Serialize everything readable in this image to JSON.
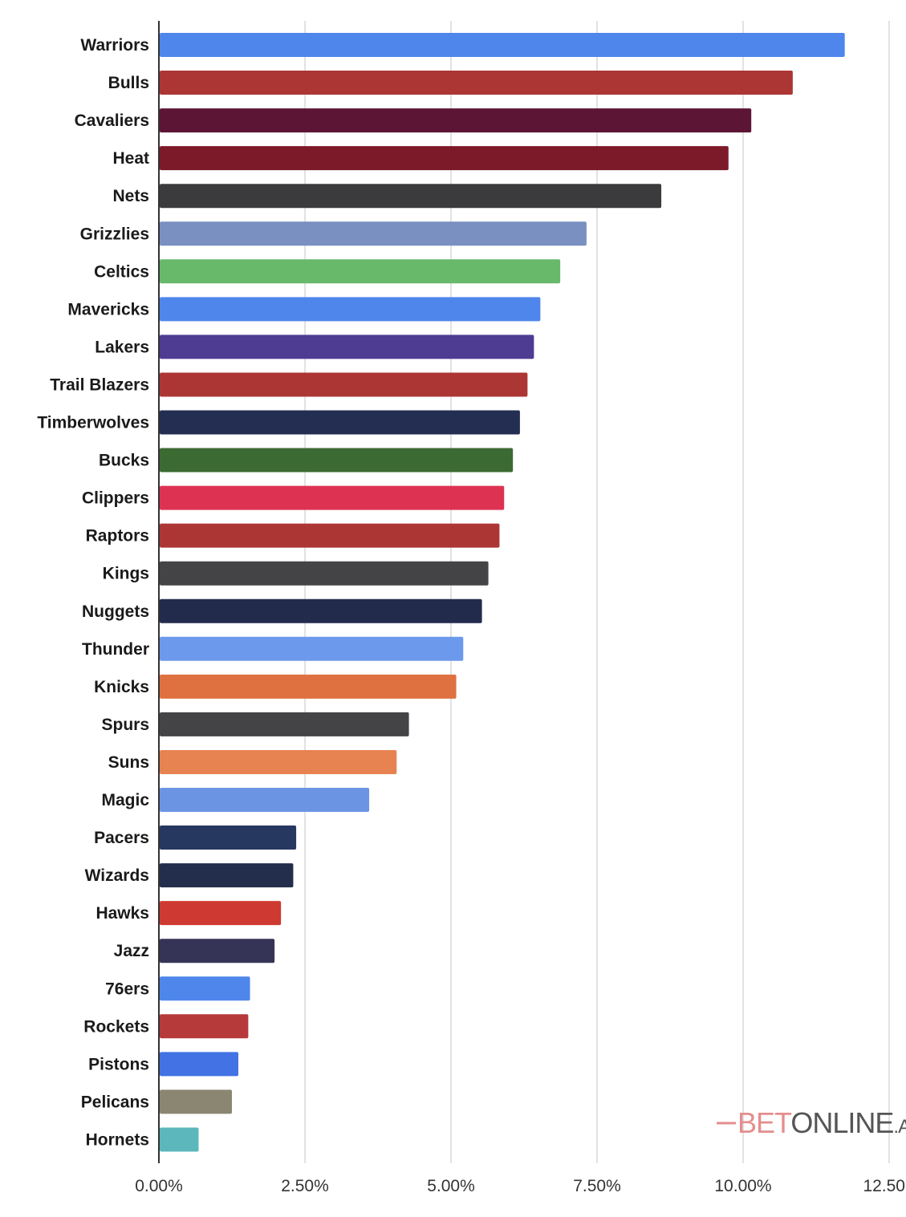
{
  "chart_data": {
    "type": "bar",
    "orientation": "horizontal",
    "title": "",
    "xlabel": "",
    "ylabel": "",
    "xlim": [
      0,
      12.5
    ],
    "grid": "vertical",
    "x_tick_labels": [
      "0.00%",
      "2.50%",
      "5.00%",
      "7.50%",
      "10.00%",
      "12.50"
    ],
    "x_ticks": [
      0,
      2.5,
      5,
      7.5,
      10,
      12.5
    ],
    "categories": [
      "Warriors",
      "Bulls",
      "Cavaliers",
      "Heat",
      "Nets",
      "Grizzlies",
      "Celtics",
      "Mavericks",
      "Lakers",
      "Trail Blazers",
      "Timberwolves",
      "Bucks",
      "Clippers",
      "Raptors",
      "Kings",
      "Nuggets",
      "Thunder",
      "Knicks",
      "Spurs",
      "Suns",
      "Magic",
      "Pacers",
      "Wizards",
      "Hawks",
      "Jazz",
      "76ers",
      "Rockets",
      "Pistons",
      "Pelicans",
      "Hornets"
    ],
    "values": [
      11.74,
      10.85,
      10.14,
      9.75,
      8.6,
      7.32,
      6.87,
      6.53,
      6.42,
      6.31,
      6.18,
      6.06,
      5.91,
      5.83,
      5.64,
      5.53,
      5.21,
      5.09,
      4.28,
      4.07,
      3.6,
      2.35,
      2.3,
      2.09,
      1.98,
      1.56,
      1.53,
      1.36,
      1.25,
      0.68
    ],
    "colors": [
      "#4f86ec",
      "#ac3634",
      "#5d1535",
      "#7d1a2a",
      "#3b3b3d",
      "#7a90c0",
      "#68b96a",
      "#4f86ec",
      "#4e3b92",
      "#ac3634",
      "#232e52",
      "#3c6a33",
      "#dd3252",
      "#ac3634",
      "#444446",
      "#232b4d",
      "#6d99ec",
      "#df7140",
      "#444446",
      "#e68351",
      "#6b95e3",
      "#263760",
      "#232e4c",
      "#ce3a31",
      "#363456",
      "#4f86ec",
      "#b63a3a",
      "#4272e3",
      "#8b8672",
      "#5bb7bb"
    ]
  },
  "watermark": {
    "brand_part1": "BET",
    "brand_part2": "ONLINE",
    "brand_part3": ".A",
    "colors": {
      "part1": "#e48e8e",
      "part2": "#555555"
    }
  }
}
